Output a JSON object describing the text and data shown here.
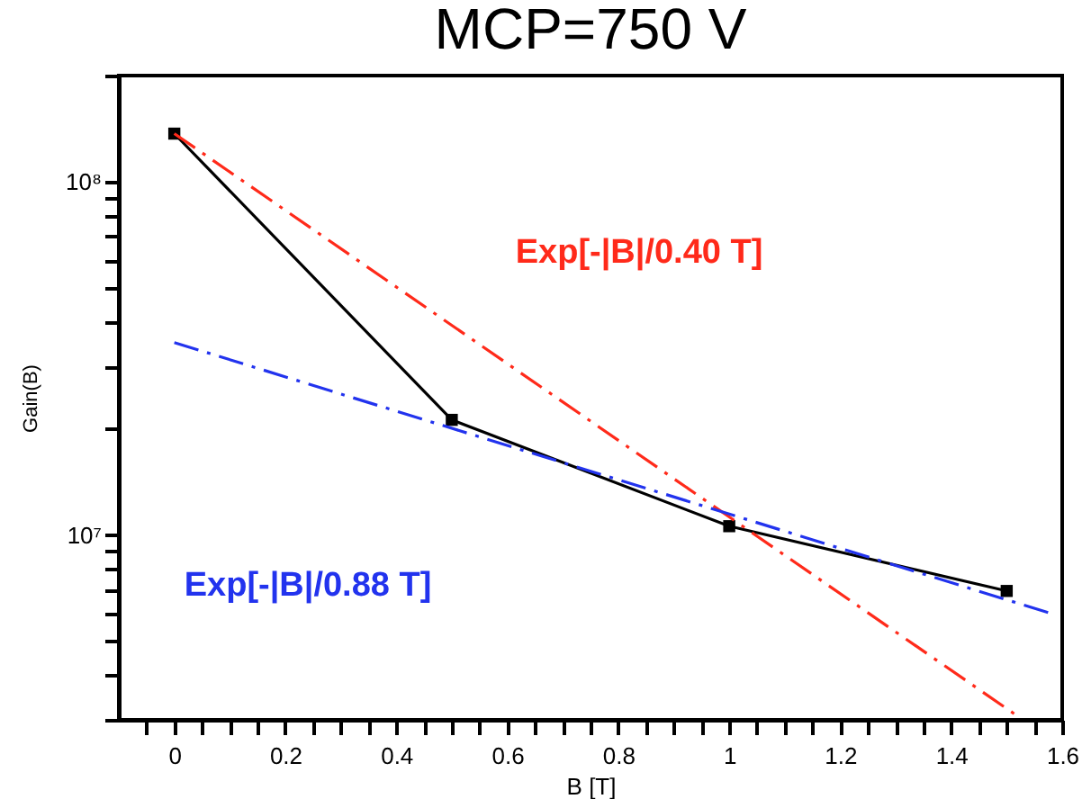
{
  "chart_data": {
    "type": "line",
    "title": "MCP=750 V",
    "xlabel": "B [T]",
    "ylabel": "Gain(B)",
    "log": "y",
    "grid": false,
    "xlim": [
      -0.1,
      1.6
    ],
    "ylim": [
      3000000,
      200000000
    ],
    "xticks": [
      {
        "value": -0.05,
        "label": null
      },
      0,
      {
        "value": 0.05,
        "label": null
      },
      {
        "value": 0.1,
        "label": null
      },
      {
        "value": 0.15,
        "label": null
      },
      0.2,
      {
        "value": 0.25,
        "label": null
      },
      {
        "value": 0.3,
        "label": null
      },
      {
        "value": 0.35,
        "label": null
      },
      0.4,
      {
        "value": 0.45,
        "label": null
      },
      {
        "value": 0.5,
        "label": null
      },
      {
        "value": 0.55,
        "label": null
      },
      0.6,
      {
        "value": 0.65,
        "label": null
      },
      {
        "value": 0.7,
        "label": null
      },
      {
        "value": 0.75,
        "label": null
      },
      0.8,
      {
        "value": 0.85,
        "label": null
      },
      {
        "value": 0.9,
        "label": null
      },
      {
        "value": 0.95,
        "label": null
      },
      1,
      {
        "value": 1.05,
        "label": null
      },
      {
        "value": 1.1,
        "label": null
      },
      {
        "value": 1.15,
        "label": null
      },
      1.2,
      {
        "value": 1.25,
        "label": null
      },
      {
        "value": 1.3,
        "label": null
      },
      {
        "value": 1.35,
        "label": null
      },
      1.4,
      {
        "value": 1.45,
        "label": null
      },
      {
        "value": 1.5,
        "label": null
      },
      {
        "value": 1.55,
        "label": null
      },
      1.6
    ],
    "yticks": [
      {
        "value": 3000000,
        "label": null
      },
      {
        "value": 4000000,
        "label": null
      },
      {
        "value": 5000000,
        "label": null
      },
      {
        "value": 6000000,
        "label": null
      },
      {
        "value": 7000000,
        "label": null
      },
      {
        "value": 8000000,
        "label": null
      },
      {
        "value": 9000000,
        "label": null
      },
      {
        "value": 10000000,
        "label": "10⁷"
      },
      {
        "value": 20000000,
        "label": null
      },
      {
        "value": 30000000,
        "label": null
      },
      {
        "value": 40000000,
        "label": null
      },
      {
        "value": 50000000,
        "label": null
      },
      {
        "value": 60000000,
        "label": null
      },
      {
        "value": 70000000,
        "label": null
      },
      {
        "value": 80000000,
        "label": null
      },
      {
        "value": 90000000,
        "label": null
      },
      {
        "value": 100000000,
        "label": "10⁸"
      },
      {
        "value": 200000000,
        "label": null
      }
    ],
    "series": [
      {
        "color": "#000000",
        "x": [
          0,
          0.5,
          1,
          1.5
        ],
        "values": [
          137000000,
          21200000,
          10600000,
          6950000
        ],
        "marker": "square",
        "line_style": "solid"
      },
      {
        "name": "Exp[-|B|/0.40 T]",
        "color": "#ff2a1a",
        "x": [
          0,
          1.52
        ],
        "values": [
          137000000,
          3070000
        ],
        "marker": "none",
        "line_style": "dashed"
      },
      {
        "name": "Exp[-|B|/0.88 T]",
        "color": "#2233ee",
        "x": [
          0,
          1.58
        ],
        "values": [
          35100000,
          6000000
        ],
        "marker": "none",
        "line_style": "dashed"
      }
    ]
  }
}
